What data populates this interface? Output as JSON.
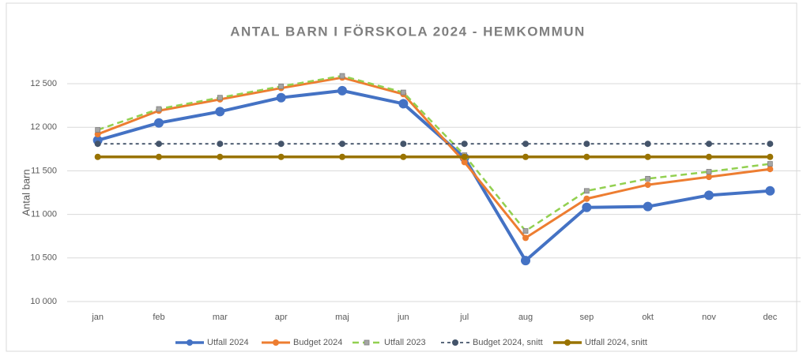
{
  "chart_data": {
    "type": "line",
    "title": "ANTAL BARN I FÖRSKOLA 2024 - HEMKOMMUN",
    "y_label": "Antal barn",
    "categories": [
      "jan",
      "feb",
      "mar",
      "apr",
      "maj",
      "jun",
      "jul",
      "aug",
      "sep",
      "okt",
      "nov",
      "dec"
    ],
    "series": [
      {
        "name": "Utfall 2024",
        "color": "#4472c4",
        "dashed": false,
        "values": [
          11850,
          12050,
          12180,
          12340,
          12420,
          12270,
          11650,
          10470,
          11080,
          11090,
          11220,
          11270
        ]
      },
      {
        "name": "Budget 2024",
        "color": "#ed7d31",
        "dashed": false,
        "values": [
          11920,
          12190,
          12320,
          12450,
          12570,
          12380,
          11600,
          10730,
          11180,
          11340,
          11430,
          11520
        ]
      },
      {
        "name": "Utfall 2023",
        "color": "#92d050",
        "dashed": true,
        "values": [
          11970,
          12210,
          12340,
          12470,
          12590,
          12400,
          11680,
          10810,
          11270,
          11410,
          11490,
          11580
        ]
      },
      {
        "name": "Budget 2024, snitt",
        "color": "#44546a",
        "dashed": true,
        "values": [
          11810,
          11810,
          11810,
          11810,
          11810,
          11810,
          11810,
          11810,
          11810,
          11810,
          11810,
          11810
        ]
      },
      {
        "name": "Utfall 2024, snitt",
        "color": "#997300",
        "dashed": false,
        "values": [
          11660,
          11660,
          11660,
          11660,
          11660,
          11660,
          11660,
          11660,
          11660,
          11660,
          11660,
          11660
        ]
      }
    ],
    "ylim": [
      10000,
      12600
    ],
    "yticks": [
      {
        "value": 10000,
        "label": "10 000"
      },
      {
        "value": 10500,
        "label": "10 500"
      },
      {
        "value": 11000,
        "label": "11 000"
      },
      {
        "value": 11500,
        "label": "11 500"
      },
      {
        "value": 12000,
        "label": "12 000"
      },
      {
        "value": 12500,
        "label": "12 500"
      }
    ],
    "grid": true,
    "legend": "bottom"
  }
}
